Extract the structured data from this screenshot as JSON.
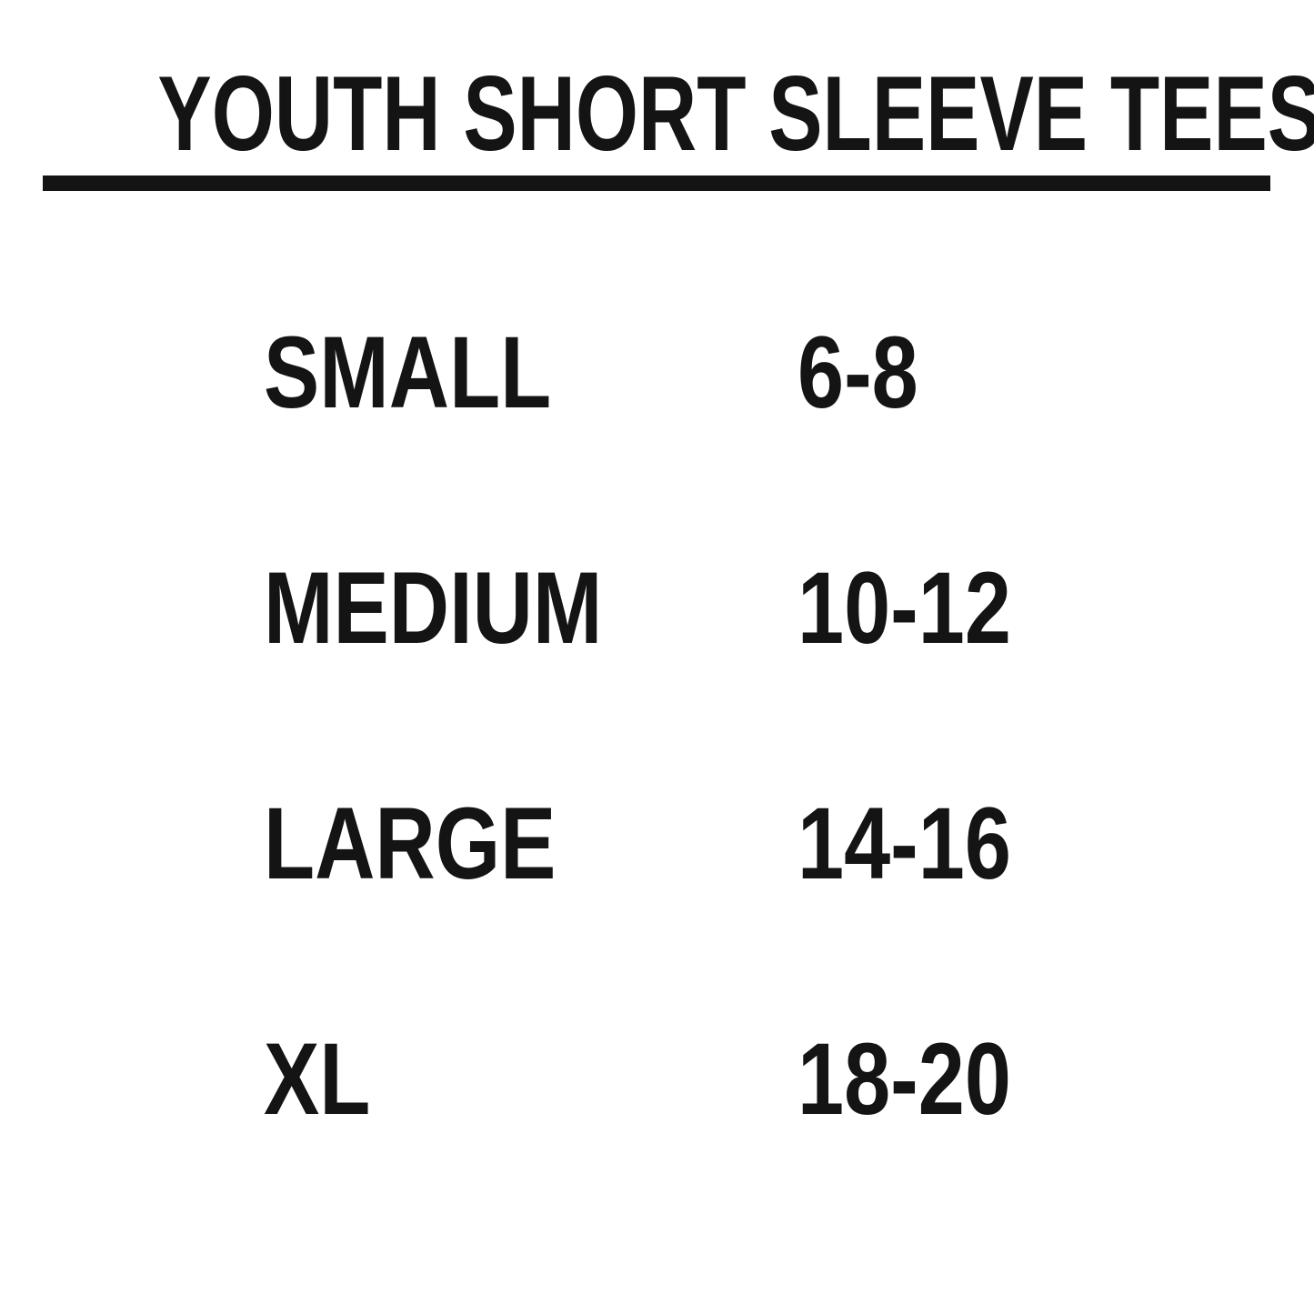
{
  "page": {
    "background_color": "#ffffff",
    "text_color": "#141414"
  },
  "header": {
    "title": "YOUTH SHORT SLEEVE TEES"
  },
  "size_table": {
    "rows": [
      {
        "size": "SMALL",
        "range": "6-8"
      },
      {
        "size": "MEDIUM",
        "range": "10-12"
      },
      {
        "size": "LARGE",
        "range": "14-16"
      },
      {
        "size": "XL",
        "range": "18-20"
      }
    ]
  }
}
